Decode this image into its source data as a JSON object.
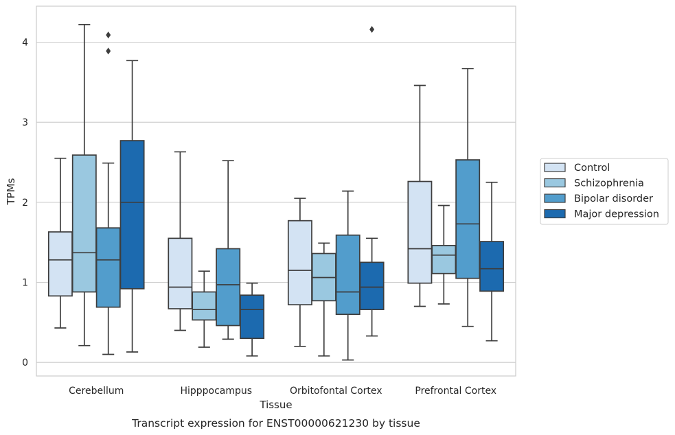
{
  "chart_data": {
    "type": "box",
    "caption": "Transcript expression for ENST00000621230 by tissue",
    "xlabel": "Tissue",
    "ylabel": "TPMs",
    "ylim": [
      -0.17,
      4.45
    ],
    "yticks": [
      0,
      1,
      2,
      3,
      4
    ],
    "grid": "horizontal",
    "legend_position": "right",
    "categories": [
      "Cerebellum",
      "Hipppocampus",
      "Orbitofontal Cortex",
      "Prefrontal Cortex"
    ],
    "series": [
      {
        "name": "Control",
        "color": "#d3e3f3",
        "boxes": [
          {
            "whislo": 0.43,
            "q1": 0.83,
            "med": 1.28,
            "q3": 1.63,
            "whishi": 2.55,
            "fliers": []
          },
          {
            "whislo": 0.4,
            "q1": 0.67,
            "med": 0.94,
            "q3": 1.55,
            "whishi": 2.63,
            "fliers": []
          },
          {
            "whislo": 0.2,
            "q1": 0.72,
            "med": 1.15,
            "q3": 1.77,
            "whishi": 2.05,
            "fliers": []
          },
          {
            "whislo": 0.7,
            "q1": 0.99,
            "med": 1.42,
            "q3": 2.26,
            "whishi": 3.46,
            "fliers": []
          }
        ]
      },
      {
        "name": "Schizophrenia",
        "color": "#9ac8e0",
        "boxes": [
          {
            "whislo": 0.21,
            "q1": 0.88,
            "med": 1.37,
            "q3": 2.59,
            "whishi": 4.22,
            "fliers": []
          },
          {
            "whislo": 0.19,
            "q1": 0.53,
            "med": 0.66,
            "q3": 0.88,
            "whishi": 1.14,
            "fliers": []
          },
          {
            "whislo": 0.08,
            "q1": 0.77,
            "med": 1.06,
            "q3": 1.36,
            "whishi": 1.49,
            "fliers": []
          },
          {
            "whislo": 0.73,
            "q1": 1.11,
            "med": 1.34,
            "q3": 1.46,
            "whishi": 1.96,
            "fliers": []
          }
        ]
      },
      {
        "name": "Bipolar disorder",
        "color": "#529dcc",
        "boxes": [
          {
            "whislo": 0.1,
            "q1": 0.69,
            "med": 1.28,
            "q3": 1.68,
            "whishi": 2.49,
            "fliers": [
              4.09,
              3.89
            ]
          },
          {
            "whislo": 0.29,
            "q1": 0.46,
            "med": 0.97,
            "q3": 1.42,
            "whishi": 2.52,
            "fliers": []
          },
          {
            "whislo": 0.03,
            "q1": 0.6,
            "med": 0.88,
            "q3": 1.59,
            "whishi": 2.14,
            "fliers": []
          },
          {
            "whislo": 0.45,
            "q1": 1.05,
            "med": 1.73,
            "q3": 2.53,
            "whishi": 3.67,
            "fliers": []
          }
        ]
      },
      {
        "name": "Major depression",
        "color": "#1c6aaf",
        "boxes": [
          {
            "whislo": 0.13,
            "q1": 0.92,
            "med": 2.0,
            "q3": 2.77,
            "whishi": 3.77,
            "fliers": []
          },
          {
            "whislo": 0.08,
            "q1": 0.3,
            "med": 0.66,
            "q3": 0.84,
            "whishi": 0.99,
            "fliers": []
          },
          {
            "whislo": 0.33,
            "q1": 0.66,
            "med": 0.94,
            "q3": 1.25,
            "whishi": 1.55,
            "fliers": [
              4.16
            ]
          },
          {
            "whislo": 0.27,
            "q1": 0.89,
            "med": 1.17,
            "q3": 1.51,
            "whishi": 2.25,
            "fliers": []
          }
        ]
      }
    ]
  }
}
